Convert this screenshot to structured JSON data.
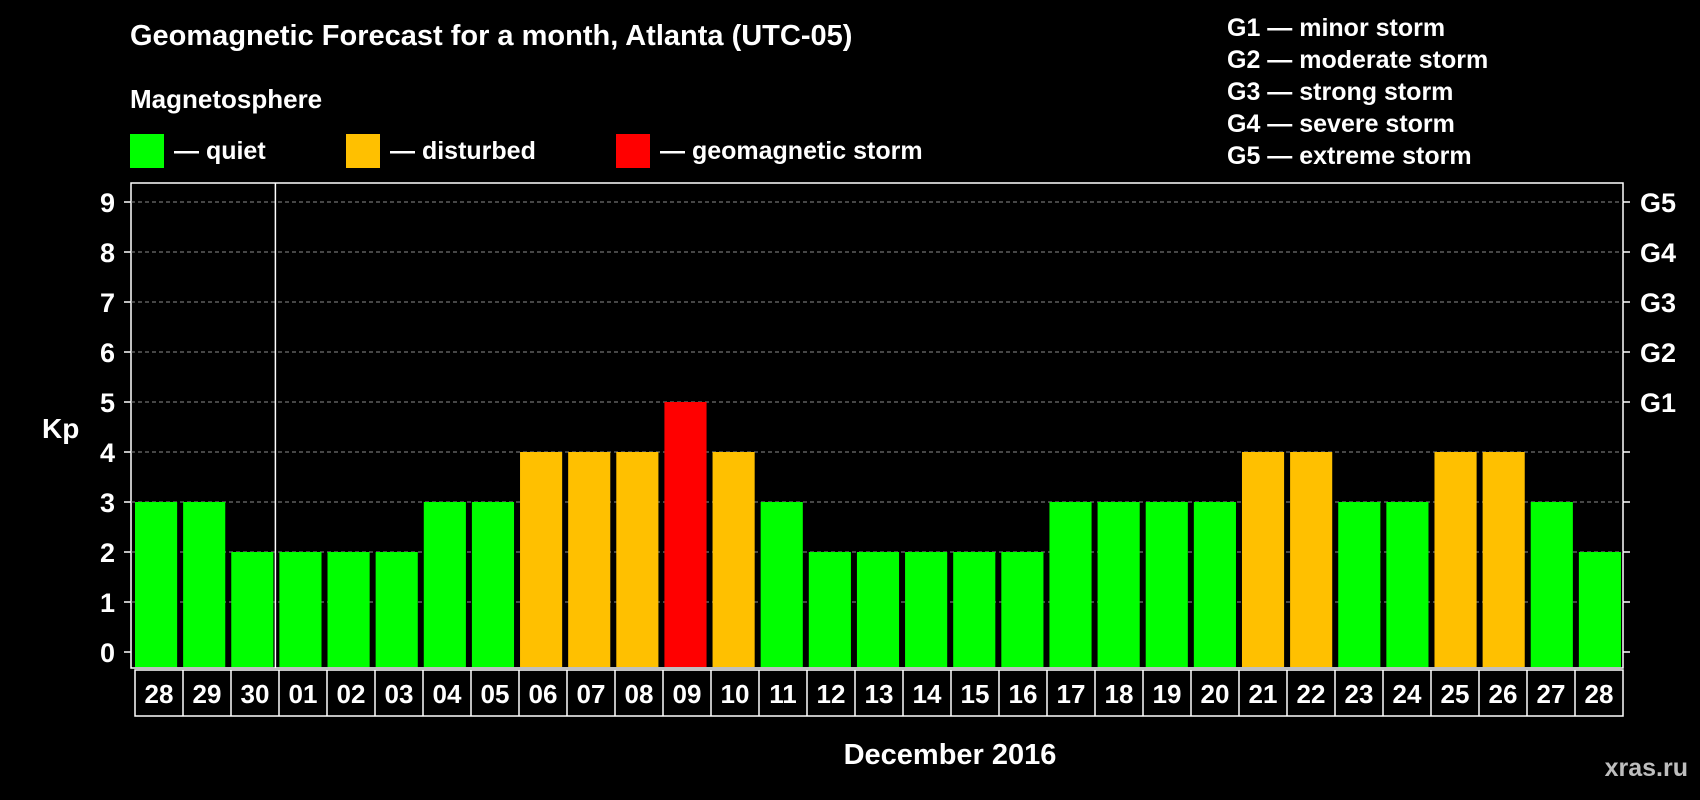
{
  "chart_data": {
    "type": "bar",
    "title": "Geomagnetic Forecast for a month, Atlanta (UTC-05)",
    "subtitle": "Magnetosphere",
    "ylabel": "Kp",
    "xlabel": "December 2016",
    "ylim": [
      0,
      9
    ],
    "yticks": [
      "0",
      "1",
      "2",
      "3",
      "4",
      "5",
      "6",
      "7",
      "8",
      "9"
    ],
    "right_ticks": [
      {
        "value": 5,
        "label": "G1"
      },
      {
        "value": 6,
        "label": "G2"
      },
      {
        "value": 7,
        "label": "G3"
      },
      {
        "value": 8,
        "label": "G4"
      },
      {
        "value": 9,
        "label": "G5"
      }
    ],
    "legend": [
      {
        "label": "— quiet",
        "color": "#00ff00"
      },
      {
        "label": "— disturbed",
        "color": "#ffc000"
      },
      {
        "label": "— geomagnetic storm",
        "color": "#ff0000"
      }
    ],
    "storm_legend": [
      "G1 — minor storm",
      "G2 — moderate storm",
      "G3 — strong storm",
      "G4 — severe storm",
      "G5 — extreme storm"
    ],
    "categories": [
      "28",
      "29",
      "30",
      "01",
      "02",
      "03",
      "04",
      "05",
      "06",
      "07",
      "08",
      "09",
      "10",
      "11",
      "12",
      "13",
      "14",
      "15",
      "16",
      "17",
      "18",
      "19",
      "20",
      "21",
      "22",
      "23",
      "24",
      "25",
      "26",
      "27",
      "28"
    ],
    "values": [
      3,
      3,
      2,
      2,
      2,
      2,
      3,
      3,
      4,
      4,
      4,
      5,
      4,
      3,
      2,
      2,
      2,
      2,
      2,
      3,
      3,
      3,
      3,
      4,
      4,
      3,
      3,
      4,
      4,
      3,
      2
    ],
    "month_divider_after_index": 2,
    "colors": {
      "quiet": "#00ff00",
      "disturbed": "#ffc000",
      "storm": "#ff0000",
      "grid": "#8c8c8c"
    }
  },
  "watermark": "xras.ru"
}
